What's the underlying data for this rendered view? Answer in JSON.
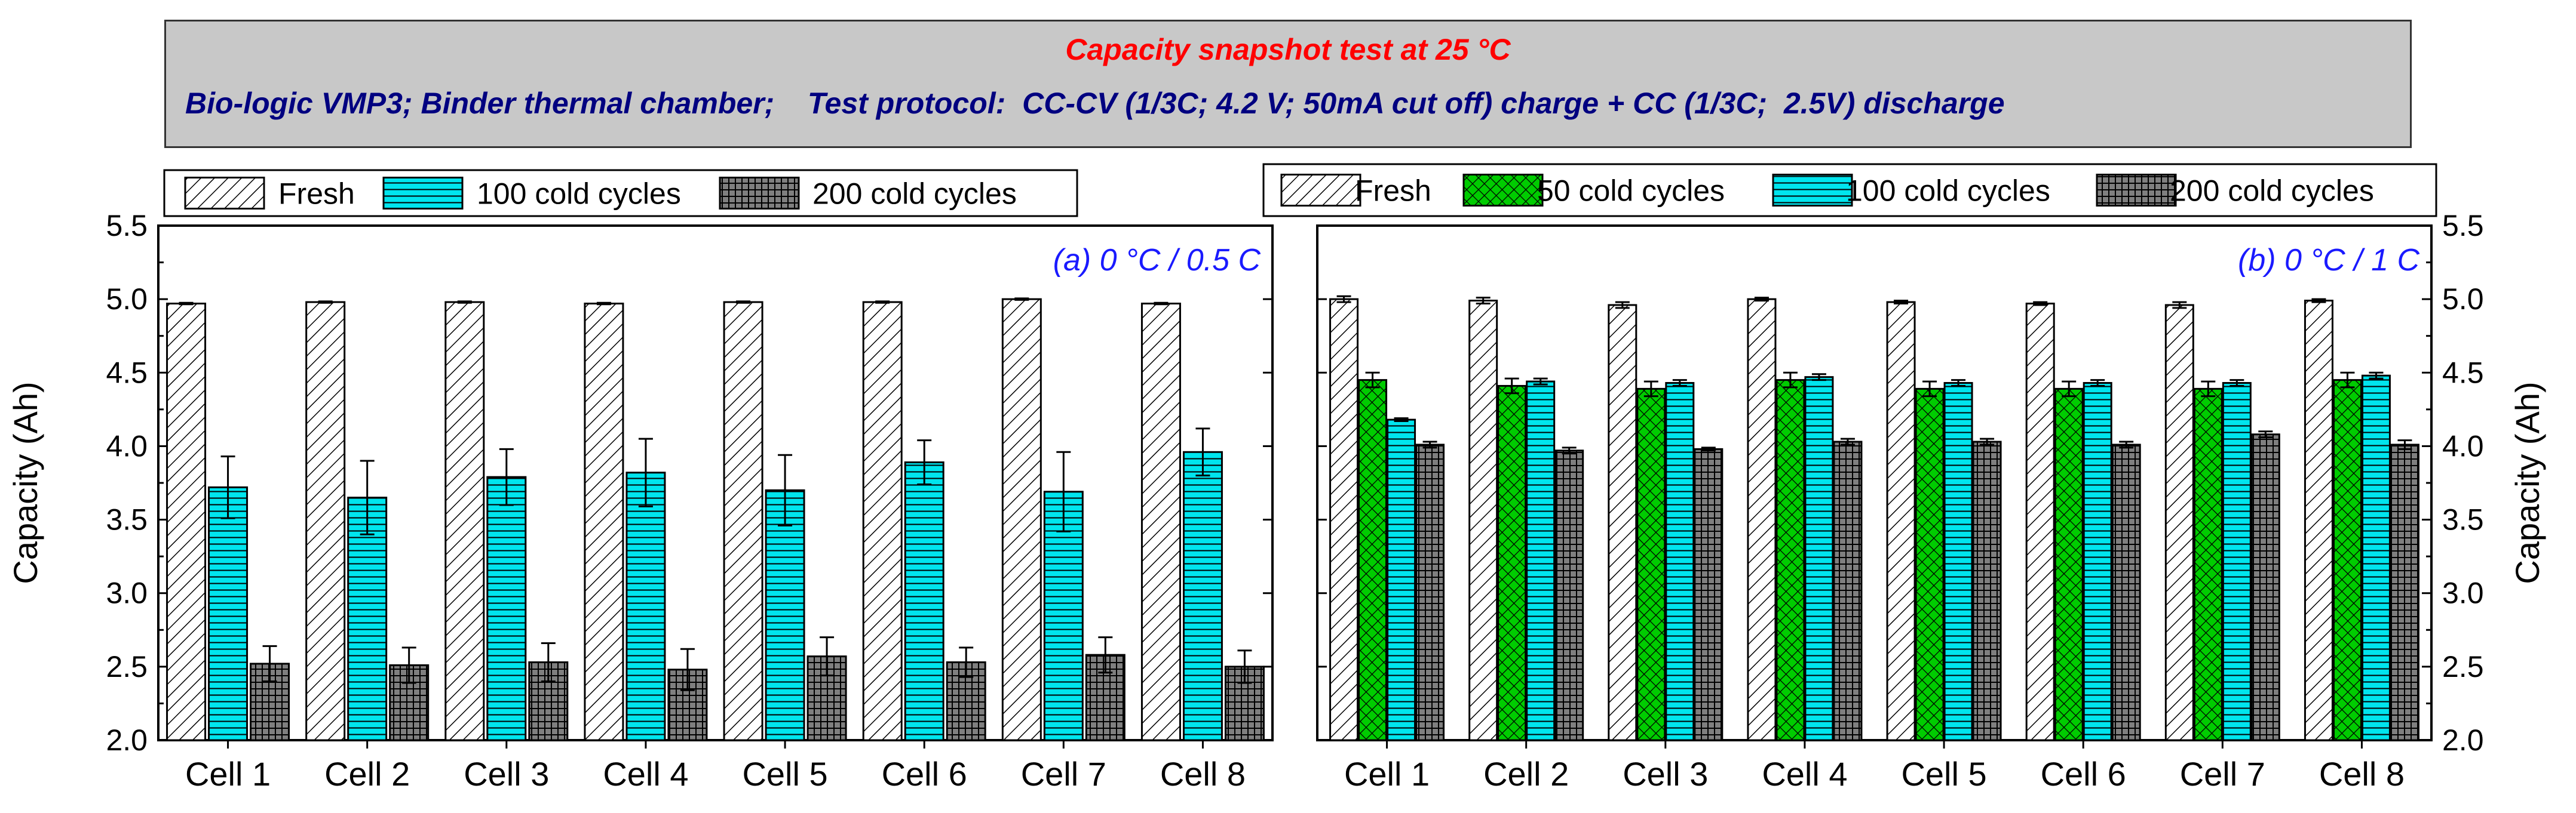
{
  "header": {
    "title": "Capacity snapshot test at 25 °C",
    "subtitle": "Bio-logic VMP3; Binder thermal chamber;    Test protocol:  CC-CV (1/3C; 4.2 V; 50mA cut off) charge + CC (1/3C;  2.5V) discharge"
  },
  "chart_data": [
    {
      "type": "bar",
      "title": "(a) 0 °C  / 0.5 C",
      "xlabel": "",
      "ylabel": "Capacity (Ah)",
      "ylim": [
        2.0,
        5.5
      ],
      "yticks": [
        "2.0",
        "2.5",
        "3.0",
        "3.5",
        "4.0",
        "4.5",
        "5.0",
        "5.5"
      ],
      "legend_position": "top",
      "categories": [
        "Cell 1",
        "Cell 2",
        "Cell 3",
        "Cell 4",
        "Cell 5",
        "Cell 6",
        "Cell 7",
        "Cell 8"
      ],
      "series": [
        {
          "name": "Fresh",
          "pattern": "diagonal-hatch",
          "color": "#ffffff",
          "values": [
            4.97,
            4.98,
            4.98,
            4.97,
            4.98,
            4.98,
            5.0,
            4.97
          ],
          "errors": [
            0.005,
            0.005,
            0.005,
            0.005,
            0.005,
            0.005,
            0.005,
            0.005
          ]
        },
        {
          "name": "100 cold cycles",
          "pattern": "horizontal-lines",
          "color": "#00e5ee",
          "values": [
            3.72,
            3.65,
            3.79,
            3.82,
            3.7,
            3.89,
            3.69,
            3.96
          ],
          "errors": [
            0.21,
            0.25,
            0.19,
            0.23,
            0.24,
            0.15,
            0.27,
            0.16
          ]
        },
        {
          "name": "200 cold cycles",
          "pattern": "grid",
          "color": "#7f7f7f",
          "values": [
            2.52,
            2.51,
            2.53,
            2.48,
            2.57,
            2.53,
            2.58,
            2.5
          ],
          "errors": [
            0.12,
            0.12,
            0.13,
            0.14,
            0.13,
            0.1,
            0.12,
            0.11
          ]
        }
      ]
    },
    {
      "type": "bar",
      "title": "(b) 0 °C  / 1 C",
      "xlabel": "",
      "ylabel": "Capacity (Ah)",
      "ylim": [
        2.0,
        5.5
      ],
      "yticks": [
        "2.0",
        "2.5",
        "3.0",
        "3.5",
        "4.0",
        "4.5",
        "5.0",
        "5.5"
      ],
      "legend_position": "top",
      "categories": [
        "Cell 1",
        "Cell 2",
        "Cell 3",
        "Cell 4",
        "Cell 5",
        "Cell 6",
        "Cell 7",
        "Cell 8"
      ],
      "series": [
        {
          "name": "Fresh",
          "pattern": "diagonal-hatch",
          "color": "#ffffff",
          "values": [
            5.0,
            4.99,
            4.96,
            5.0,
            4.98,
            4.97,
            4.96,
            4.99
          ],
          "errors": [
            0.02,
            0.02,
            0.02,
            0.01,
            0.01,
            0.01,
            0.02,
            0.01
          ]
        },
        {
          "name": "50 cold cycles",
          "pattern": "crosshatch",
          "color": "#00cc00",
          "values": [
            4.45,
            4.41,
            4.39,
            4.45,
            4.39,
            4.39,
            4.39,
            4.45
          ],
          "errors": [
            0.05,
            0.05,
            0.05,
            0.05,
            0.05,
            0.05,
            0.05,
            0.05
          ]
        },
        {
          "name": "100 cold cycles",
          "pattern": "horizontal-lines",
          "color": "#00e5ee",
          "values": [
            4.18,
            4.44,
            4.43,
            4.47,
            4.43,
            4.43,
            4.43,
            4.48
          ],
          "errors": [
            0.01,
            0.02,
            0.02,
            0.02,
            0.02,
            0.02,
            0.02,
            0.02
          ]
        },
        {
          "name": "200 cold cycles",
          "pattern": "grid",
          "color": "#7f7f7f",
          "values": [
            4.01,
            3.97,
            3.98,
            4.03,
            4.03,
            4.01,
            4.08,
            4.01
          ],
          "errors": [
            0.02,
            0.02,
            0.01,
            0.02,
            0.02,
            0.02,
            0.02,
            0.03
          ]
        }
      ]
    }
  ]
}
